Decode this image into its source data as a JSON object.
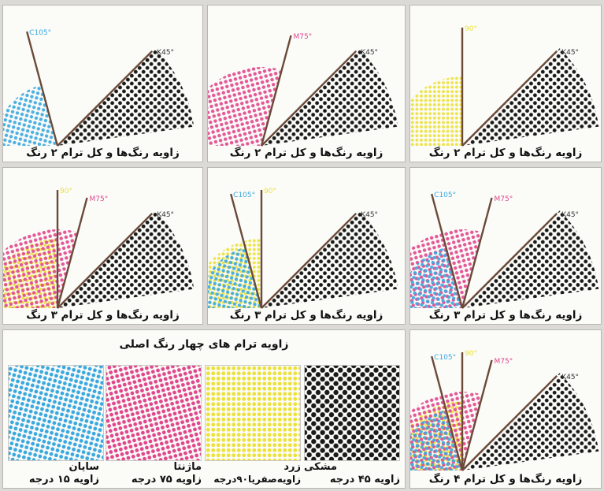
{
  "colors": {
    "cyan": "#3aa8df",
    "magenta": "#e0468c",
    "yellow": "#ece23a",
    "black": "#1a1a1a",
    "label_black": "#333333"
  },
  "panels": [
    {
      "caption": "زاویه رنگ‌ها و کل ترام ۲ رنگ",
      "lines": [
        {
          "color": "yellow",
          "label": "90°"
        },
        {
          "color": "black",
          "label": "K45°"
        }
      ]
    },
    {
      "caption": "زاویه رنگ‌ها و کل ترام ۲ رنگ",
      "lines": [
        {
          "color": "magenta",
          "label": "M75°"
        },
        {
          "color": "black",
          "label": "K45°"
        }
      ]
    },
    {
      "caption": "زاویه رنگ‌ها و کل ترام ۲ رنگ",
      "lines": [
        {
          "color": "cyan",
          "label": "C105°"
        },
        {
          "color": "black",
          "label": "K45°"
        }
      ]
    },
    {
      "caption": "زاویه رنگ‌ها و کل ترام ۳ رنگ",
      "lines": [
        {
          "color": "cyan",
          "label": "C105°"
        },
        {
          "color": "magenta",
          "label": "M75°"
        },
        {
          "color": "black",
          "label": "K45°"
        }
      ]
    },
    {
      "caption": "زاویه رنگ‌ها و کل ترام ۳ رنگ",
      "lines": [
        {
          "color": "cyan",
          "label": "C105°"
        },
        {
          "color": "yellow",
          "label": "90°"
        },
        {
          "color": "black",
          "label": "K45°"
        }
      ]
    },
    {
      "caption": "زاویه رنگ‌ها و کل ترام ۳ رنگ",
      "lines": [
        {
          "color": "yellow",
          "label": "90°"
        },
        {
          "color": "magenta",
          "label": "M75°"
        },
        {
          "color": "black",
          "label": "K45°"
        }
      ]
    },
    {
      "caption": "زاویه رنگ‌ها و کل ترام ۴ رنگ",
      "lines": [
        {
          "color": "cyan",
          "label": "C105°"
        },
        {
          "color": "yellow",
          "label": "90°"
        },
        {
          "color": "magenta",
          "label": "M75°"
        },
        {
          "color": "black",
          "label": "K45°"
        }
      ]
    }
  ],
  "screens": {
    "title": "زاویه ترام های چهار  رنگ اصلی",
    "swatches": [
      {
        "name": "مشکی",
        "angle": "زاویه ۴۵ درجه",
        "color": "black"
      },
      {
        "name": "زرد",
        "angle": "زاویه‌صفریا۹۰درجه",
        "color": "yellow"
      },
      {
        "name": "ماژنتا",
        "angle": "زاویه ۷۵ درجه",
        "color": "magenta"
      },
      {
        "name": "سایان",
        "angle": "زاویه ۱۵ درجه",
        "color": "cyan"
      }
    ]
  }
}
